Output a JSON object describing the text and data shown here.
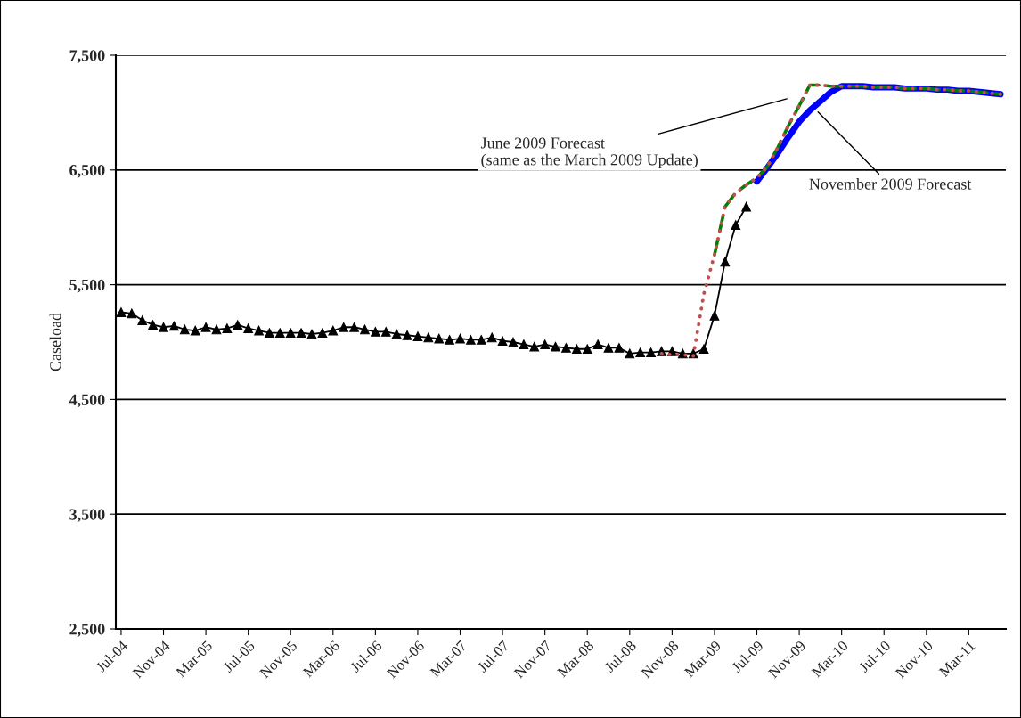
{
  "chart_data": {
    "type": "line",
    "categories": [
      "Jul-04",
      null,
      null,
      null,
      "Nov-04",
      null,
      null,
      null,
      "Mar-05",
      null,
      null,
      null,
      "Jul-05",
      null,
      null,
      null,
      "Nov-05",
      null,
      null,
      null,
      "Mar-06",
      null,
      null,
      null,
      "Jul-06",
      null,
      null,
      null,
      "Nov-06",
      null,
      null,
      null,
      "Mar-07",
      null,
      null,
      null,
      "Jul-07",
      null,
      null,
      null,
      "Nov-07",
      null,
      null,
      null,
      "Mar-08",
      null,
      null,
      null,
      "Jul-08",
      null,
      null,
      null,
      "Nov-08",
      null,
      null,
      null,
      "Mar-09",
      null,
      null,
      null,
      "Jul-09",
      null,
      null,
      null,
      "Nov-09",
      null,
      null,
      null,
      "Mar-10",
      null,
      null,
      null,
      "Jul-10",
      null,
      null,
      null,
      "Nov-10",
      null,
      null,
      null,
      "Mar-11",
      null,
      null,
      null
    ],
    "ylabel": "Caseload",
    "ylim": [
      2500,
      7500
    ],
    "yticks": [
      {
        "value": 2500,
        "label": "2,500"
      },
      {
        "value": 3500,
        "label": "3,500"
      },
      {
        "value": 4500,
        "label": "4,500"
      },
      {
        "value": 5500,
        "label": "5,500"
      },
      {
        "value": 6500,
        "label": "6,500"
      },
      {
        "value": 7500,
        "label": "7,500"
      }
    ],
    "grid": "y",
    "legend": false,
    "series": [
      {
        "color": "#000000",
        "marker": "triangle",
        "line_style": "solid",
        "values": [
          5260,
          5250,
          5190,
          5150,
          5130,
          5140,
          5110,
          5100,
          5130,
          5110,
          5120,
          5150,
          5120,
          5100,
          5080,
          5080,
          5080,
          5080,
          5070,
          5080,
          5100,
          5130,
          5130,
          5110,
          5090,
          5090,
          5070,
          5060,
          5050,
          5040,
          5030,
          5020,
          5030,
          5020,
          5020,
          5040,
          5010,
          5000,
          4980,
          4960,
          4980,
          4960,
          4950,
          4940,
          4940,
          4980,
          4950,
          4950,
          4900,
          4910,
          4910,
          4920,
          4920,
          4900,
          4900,
          4940,
          5230,
          5700,
          6020,
          6180,
          null,
          null,
          null,
          null,
          null,
          null,
          null,
          null,
          null,
          null,
          null,
          null,
          null,
          null,
          null,
          null,
          null,
          null,
          null,
          null,
          null,
          null,
          null,
          null
        ]
      },
      {
        "color": "#0000ff",
        "marker": "none",
        "line_style": "solid",
        "values": [
          null,
          null,
          null,
          null,
          null,
          null,
          null,
          null,
          null,
          null,
          null,
          null,
          null,
          null,
          null,
          null,
          null,
          null,
          null,
          null,
          null,
          null,
          null,
          null,
          null,
          null,
          null,
          null,
          null,
          null,
          null,
          null,
          null,
          null,
          null,
          null,
          null,
          null,
          null,
          null,
          null,
          null,
          null,
          null,
          null,
          null,
          null,
          null,
          null,
          null,
          null,
          null,
          null,
          null,
          null,
          null,
          null,
          null,
          null,
          null,
          6400,
          6520,
          6650,
          6790,
          6920,
          7020,
          7100,
          7180,
          7230,
          7230,
          7230,
          7220,
          7220,
          7220,
          7210,
          7210,
          7210,
          7200,
          7200,
          7190,
          7190,
          7180,
          7170,
          7160
        ]
      },
      {
        "color": "#008000",
        "marker": "none",
        "line_style": "dashed",
        "values": [
          null,
          null,
          null,
          null,
          null,
          null,
          null,
          null,
          null,
          null,
          null,
          null,
          null,
          null,
          null,
          null,
          null,
          null,
          null,
          null,
          null,
          null,
          null,
          null,
          null,
          null,
          null,
          null,
          null,
          null,
          null,
          null,
          null,
          null,
          null,
          null,
          null,
          null,
          null,
          null,
          null,
          null,
          null,
          null,
          null,
          null,
          null,
          null,
          null,
          null,
          null,
          null,
          null,
          null,
          null,
          null,
          5760,
          6180,
          6300,
          6370,
          6430,
          6530,
          6700,
          6890,
          7060,
          7240,
          7240,
          7230,
          7230,
          7230,
          7230,
          7220,
          7220,
          7220,
          7210,
          7210,
          7210,
          7200,
          7200,
          7190,
          7190,
          7180,
          7170,
          7160
        ]
      },
      {
        "color": "#c0504d",
        "marker": "none",
        "line_style": "dotted",
        "values": [
          null,
          null,
          null,
          null,
          null,
          null,
          null,
          null,
          null,
          null,
          null,
          null,
          null,
          null,
          null,
          null,
          null,
          null,
          null,
          null,
          null,
          null,
          null,
          null,
          null,
          null,
          null,
          null,
          null,
          null,
          null,
          null,
          null,
          null,
          null,
          null,
          null,
          null,
          null,
          null,
          null,
          null,
          null,
          null,
          null,
          null,
          null,
          null,
          null,
          null,
          null,
          4900,
          4890,
          4890,
          4880,
          5420,
          5760,
          6180,
          6300,
          6370,
          6430,
          6530,
          6700,
          6890,
          7060,
          7240,
          7240,
          7230,
          7230,
          7230,
          7230,
          7220,
          7220,
          7220,
          7210,
          7210,
          7210,
          7200,
          7200,
          7190,
          7190,
          7180,
          7170,
          7160
        ]
      }
    ],
    "annotations": [
      "June 2009 Forecast\n(same as the March 2009 Update)",
      "November 2009 Forecast"
    ]
  }
}
